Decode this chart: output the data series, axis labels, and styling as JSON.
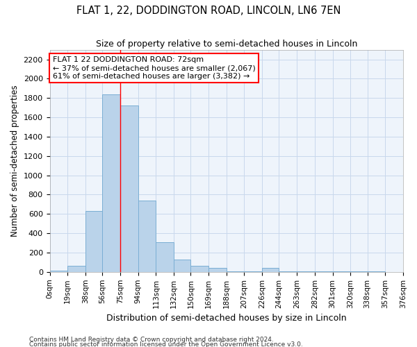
{
  "title": "FLAT 1, 22, DODDINGTON ROAD, LINCOLN, LN6 7EN",
  "subtitle": "Size of property relative to semi-detached houses in Lincoln",
  "xlabel": "Distribution of semi-detached houses by size in Lincoln",
  "ylabel": "Number of semi-detached properties",
  "bar_color": "#bad3ea",
  "bar_edge_color": "#7aaed4",
  "grid_color": "#c8d8ec",
  "background_color": "#eef4fb",
  "red_line_x": 75,
  "annotation_title": "FLAT 1 22 DODDINGTON ROAD: 72sqm",
  "annotation_line1": "← 37% of semi-detached houses are smaller (2,067)",
  "annotation_line2": "61% of semi-detached houses are larger (3,382) →",
  "bin_edges": [
    0,
    19,
    38,
    56,
    75,
    94,
    113,
    132,
    150,
    169,
    188,
    207,
    226,
    244,
    263,
    282,
    301,
    320,
    338,
    357,
    376
  ],
  "bin_heights": [
    15,
    60,
    630,
    1840,
    1720,
    740,
    305,
    130,
    65,
    40,
    5,
    5,
    40,
    5,
    5,
    5,
    5,
    5,
    5,
    2
  ],
  "ylim": [
    0,
    2300
  ],
  "yticks": [
    0,
    200,
    400,
    600,
    800,
    1000,
    1200,
    1400,
    1600,
    1800,
    2000,
    2200
  ],
  "footnote1": "Contains HM Land Registry data © Crown copyright and database right 2024.",
  "footnote2": "Contains public sector information licensed under the Open Government Licence v3.0."
}
